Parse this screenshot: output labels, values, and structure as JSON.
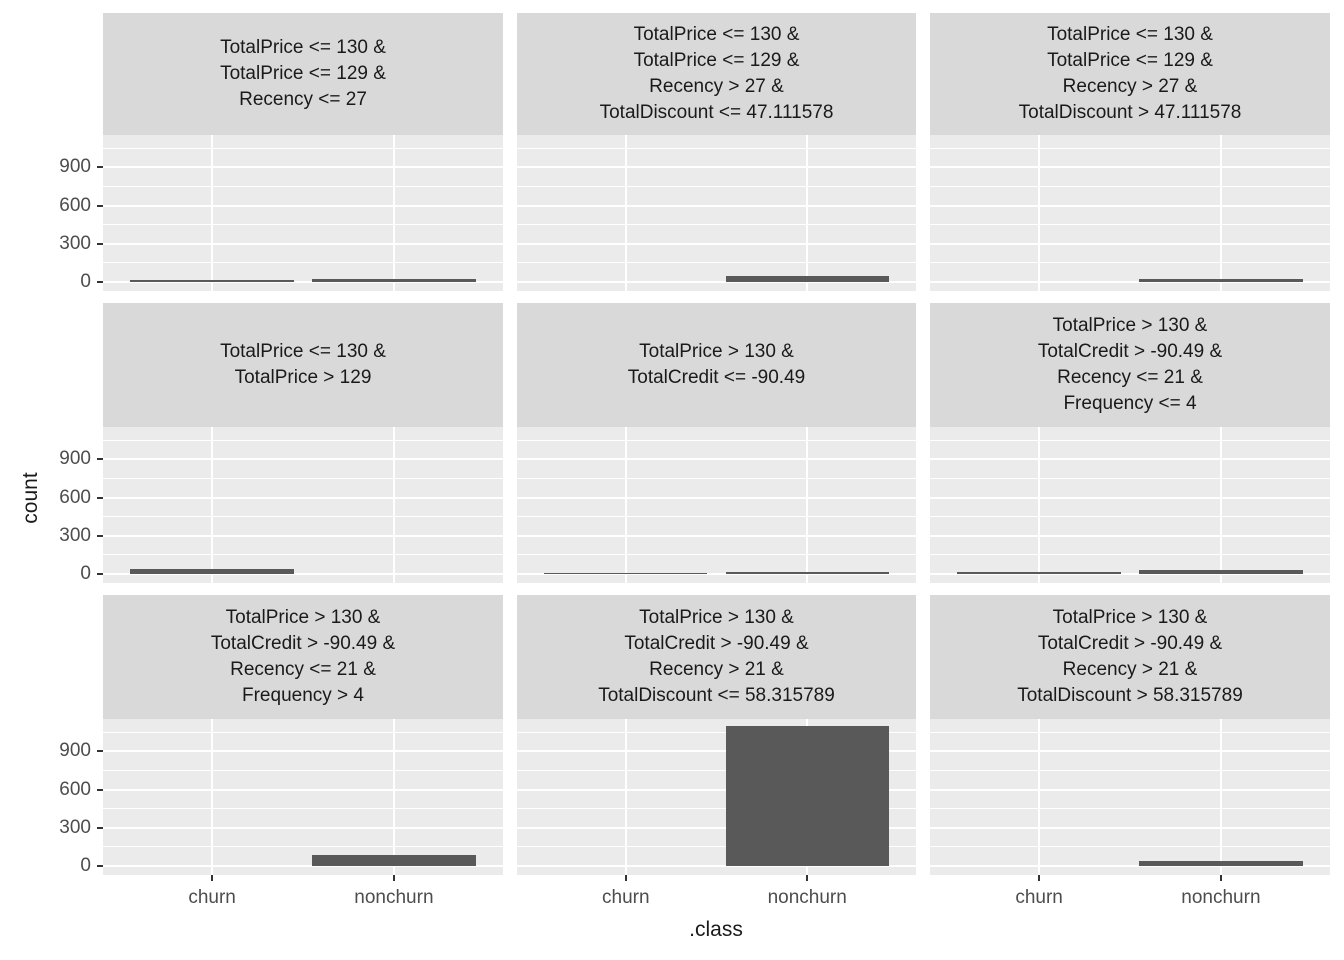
{
  "chart_data": {
    "type": "bar",
    "title": "",
    "xlabel": ".class",
    "ylabel": "count",
    "categories": [
      "churn",
      "nonchurn"
    ],
    "y_ticks": [
      0,
      300,
      600,
      900
    ],
    "y_minor_ticks": [
      150,
      450,
      750,
      1050
    ],
    "ylim": [
      0,
      1160
    ],
    "legend": "none",
    "grid": "white major/minor horizontal lines and white vertical major lines on grey panels",
    "layout": "3x3 facet grid, shared axes, y labels on left column only, x labels on bottom row only",
    "colors": {
      "bar": "#595959",
      "panel_bg": "#EBEBEB",
      "strip_bg": "#D9D9D9",
      "gridline": "#FFFFFF",
      "axis_text": "#4D4D4D",
      "title_text": "#1A1A1A",
      "tick_mark": "#333333"
    },
    "facets": [
      {
        "label_lines": [
          "TotalPrice <= 130 &",
          "TotalPrice <= 129 &",
          "Recency <= 27"
        ],
        "series": [
          {
            "category": "churn",
            "count": 15
          },
          {
            "category": "nonchurn",
            "count": 20
          }
        ]
      },
      {
        "label_lines": [
          "TotalPrice <= 130 &",
          "TotalPrice <= 129 &",
          "Recency > 27 &",
          "TotalDiscount <= 47.111578"
        ],
        "series": [
          {
            "category": "churn",
            "count": 0
          },
          {
            "category": "nonchurn",
            "count": 45
          }
        ]
      },
      {
        "label_lines": [
          "TotalPrice <= 130 &",
          "TotalPrice <= 129 &",
          "Recency > 27 &",
          "TotalDiscount > 47.111578"
        ],
        "series": [
          {
            "category": "churn",
            "count": 0
          },
          {
            "category": "nonchurn",
            "count": 20
          }
        ]
      },
      {
        "label_lines": [
          "TotalPrice <= 130 &",
          "TotalPrice > 129"
        ],
        "series": [
          {
            "category": "churn",
            "count": 40
          },
          {
            "category": "nonchurn",
            "count": 0
          }
        ]
      },
      {
        "label_lines": [
          "TotalPrice > 130 &",
          "TotalCredit <= -90.49"
        ],
        "series": [
          {
            "category": "churn",
            "count": 10
          },
          {
            "category": "nonchurn",
            "count": 15
          }
        ]
      },
      {
        "label_lines": [
          "TotalPrice > 130 &",
          "TotalCredit > -90.49 &",
          "Recency <= 21 &",
          "Frequency <= 4"
        ],
        "series": [
          {
            "category": "churn",
            "count": 15
          },
          {
            "category": "nonchurn",
            "count": 30
          }
        ]
      },
      {
        "label_lines": [
          "TotalPrice > 130 &",
          "TotalCredit > -90.49 &",
          "Recency <= 21 &",
          "Frequency > 4"
        ],
        "series": [
          {
            "category": "churn",
            "count": 0
          },
          {
            "category": "nonchurn",
            "count": 90
          }
        ]
      },
      {
        "label_lines": [
          "TotalPrice > 130 &",
          "TotalCredit > -90.49 &",
          "Recency > 21 &",
          "TotalDiscount <= 58.315789"
        ],
        "series": [
          {
            "category": "churn",
            "count": 0
          },
          {
            "category": "nonchurn",
            "count": 1100
          }
        ]
      },
      {
        "label_lines": [
          "TotalPrice > 130 &",
          "TotalCredit > -90.49 &",
          "Recency > 21 &",
          "TotalDiscount > 58.315789"
        ],
        "series": [
          {
            "category": "churn",
            "count": 0
          },
          {
            "category": "nonchurn",
            "count": 40
          }
        ]
      }
    ]
  }
}
